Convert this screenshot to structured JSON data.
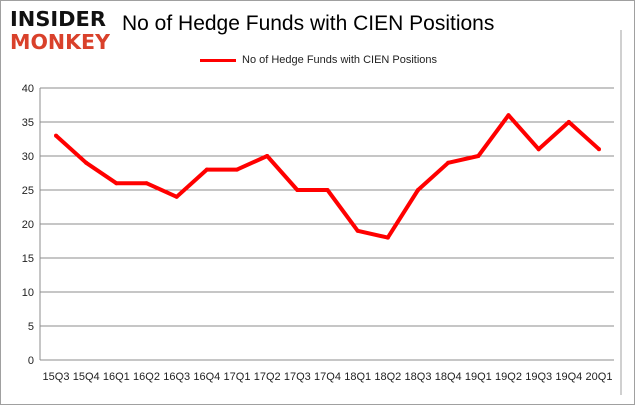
{
  "logo": {
    "line1": "INSIDER",
    "line2": "MONKEY"
  },
  "chart_data": {
    "type": "line",
    "title": "No of Hedge Funds with CIEN Positions",
    "xlabel": "",
    "ylabel": "",
    "categories": [
      "15Q3",
      "15Q4",
      "16Q1",
      "16Q2",
      "16Q3",
      "16Q4",
      "17Q1",
      "17Q2",
      "17Q3",
      "17Q4",
      "18Q1",
      "18Q2",
      "18Q3",
      "18Q4",
      "19Q1",
      "19Q2",
      "19Q3",
      "19Q4",
      "20Q1"
    ],
    "series": [
      {
        "name": "No of Hedge Funds with CIEN Positions",
        "color": "#ff0000",
        "values": [
          33,
          29,
          26,
          26,
          24,
          28,
          28,
          30,
          25,
          25,
          19,
          18,
          25,
          29,
          30,
          36,
          31,
          35,
          31
        ]
      }
    ],
    "ylim": [
      0,
      40
    ],
    "yticks": [
      0,
      5,
      10,
      15,
      20,
      25,
      30,
      35,
      40
    ],
    "grid": true,
    "legend": "top-center"
  }
}
